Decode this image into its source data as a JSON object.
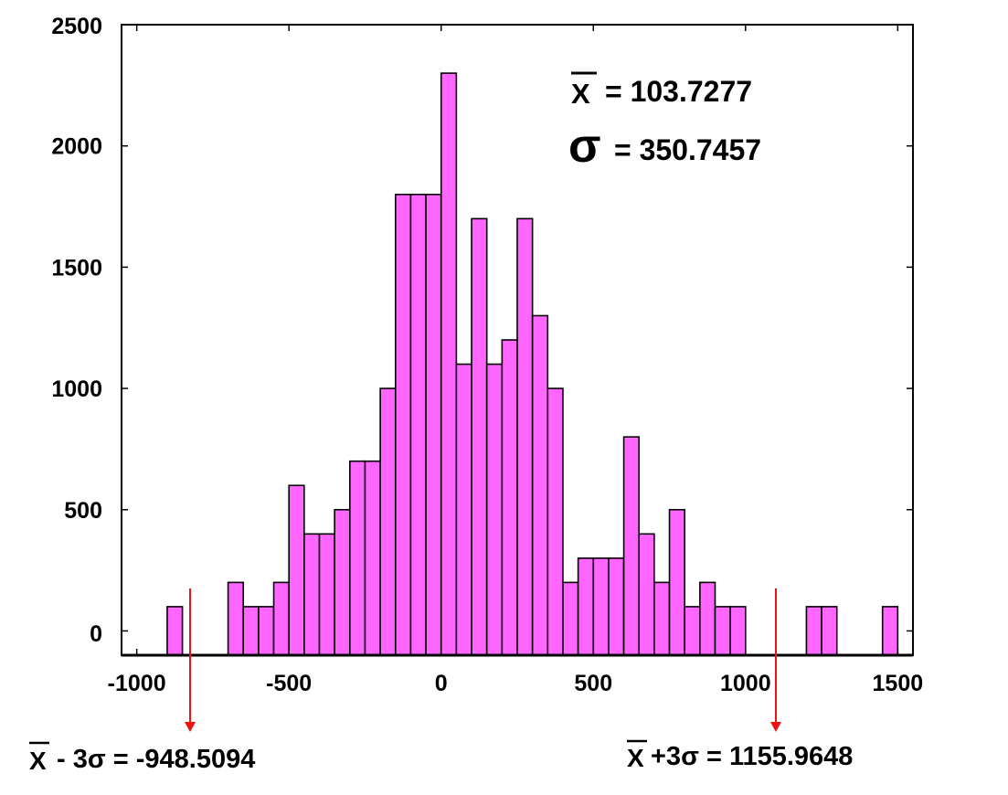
{
  "colors": {
    "bar_fill": "#FF66FF",
    "bar_stroke": "#000000",
    "marker": "#EE1111",
    "axis": "#000000"
  },
  "chart_data": {
    "type": "bar",
    "title": "",
    "xlabel": "",
    "ylabel": "",
    "bin_width": 50,
    "xlim": [
      -1050,
      1550
    ],
    "ylim": [
      -100,
      2500
    ],
    "x_ticks": [
      -1000,
      -500,
      0,
      500,
      1000,
      1500
    ],
    "x_tick_labels": [
      "-1000",
      "-500",
      "0",
      "500",
      "1000",
      "1500"
    ],
    "y_ticks": [
      0,
      500,
      1000,
      1500,
      2000,
      2500
    ],
    "y_tick_labels": [
      "0",
      "500",
      "1000",
      "1500",
      "2000",
      "2500"
    ],
    "bins": [
      {
        "x": -875,
        "y": 100
      },
      {
        "x": -675,
        "y": 200
      },
      {
        "x": -625,
        "y": 100
      },
      {
        "x": -575,
        "y": 100
      },
      {
        "x": -525,
        "y": 200
      },
      {
        "x": -475,
        "y": 600
      },
      {
        "x": -425,
        "y": 400
      },
      {
        "x": -375,
        "y": 400
      },
      {
        "x": -325,
        "y": 500
      },
      {
        "x": -275,
        "y": 700
      },
      {
        "x": -225,
        "y": 700
      },
      {
        "x": -175,
        "y": 1000
      },
      {
        "x": -125,
        "y": 1800
      },
      {
        "x": -75,
        "y": 1800
      },
      {
        "x": -25,
        "y": 1800
      },
      {
        "x": 25,
        "y": 2300
      },
      {
        "x": 75,
        "y": 1100
      },
      {
        "x": 125,
        "y": 1700
      },
      {
        "x": 175,
        "y": 1100
      },
      {
        "x": 225,
        "y": 1200
      },
      {
        "x": 275,
        "y": 1700
      },
      {
        "x": 325,
        "y": 1300
      },
      {
        "x": 375,
        "y": 1000
      },
      {
        "x": 425,
        "y": 200
      },
      {
        "x": 475,
        "y": 300
      },
      {
        "x": 525,
        "y": 300
      },
      {
        "x": 575,
        "y": 300
      },
      {
        "x": 625,
        "y": 800
      },
      {
        "x": 675,
        "y": 400
      },
      {
        "x": 725,
        "y": 200
      },
      {
        "x": 775,
        "y": 500
      },
      {
        "x": 825,
        "y": 100
      },
      {
        "x": 875,
        "y": 200
      },
      {
        "x": 925,
        "y": 100
      },
      {
        "x": 975,
        "y": 100
      },
      {
        "x": 1225,
        "y": 100
      },
      {
        "x": 1275,
        "y": 100
      },
      {
        "x": 1475,
        "y": 100
      }
    ],
    "annotations": {
      "mean": {
        "symbol": "X",
        "text": "= 103.7277"
      },
      "sigma": {
        "symbol": "σ",
        "text": "= 350.7457"
      },
      "lower": {
        "symbol": "X",
        "text": "- 3σ = -948.5094",
        "x": -790
      },
      "upper": {
        "symbol": "X",
        "text": "+3σ = 1155.9648",
        "x": 1150
      }
    }
  }
}
